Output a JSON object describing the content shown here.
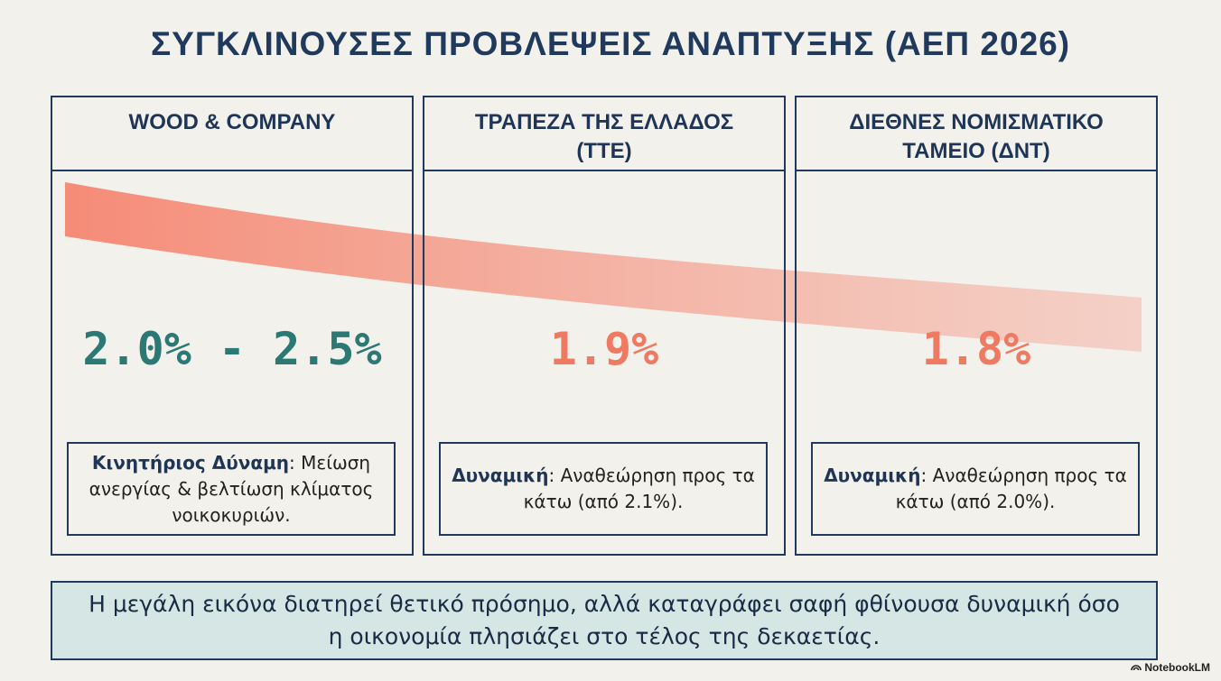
{
  "title": "ΣΥΓΚΛΙΝΟΥΣΕΣ ΠΡΟΒΛΕΨΕΙΣ ΑΝΑΠΤΥΞΗΣ (ΑΕΠ 2026)",
  "columns": [
    {
      "header": "WOOD & COMPANY",
      "value": "2.0% - 2.5%",
      "color": "#2b7874",
      "note": {
        "label": "Κινητήριος Δύναμη",
        "text": ": Μείωση ανεργίας & βελτίωση κλίματος νοικοκυριών."
      }
    },
    {
      "header": "ΤΡΑΠΕΖΑ ΤΗΣ ΕΛΛΑΔΟΣ (ΤΤΕ)",
      "value": "1.9%",
      "color": "#ee7a62",
      "note": {
        "label": "Δυναμική",
        "text": ": Αναθεώρηση προς τα κάτω (από 2.1%)."
      }
    },
    {
      "header": "ΔΙΕΘΝΕΣ ΝΟΜΙΣΜΑΤΙΚΟ ΤΑΜΕΙΟ (ΔΝΤ)",
      "value": "1.8%",
      "color": "#ee7a62",
      "note": {
        "label": "Δυναμική",
        "text": ": Αναθεώρηση προς τα κάτω (από 2.0%)."
      }
    }
  ],
  "summary": "Η μεγάλη εικόνα διατηρεί θετικό πρόσημο, αλλά καταγράφει σαφή φθίνουσα δυναμική όσο η οικονομία πλησιάζει στο τέλος της δεκαετίας.",
  "watermark": "NotebookLM"
}
